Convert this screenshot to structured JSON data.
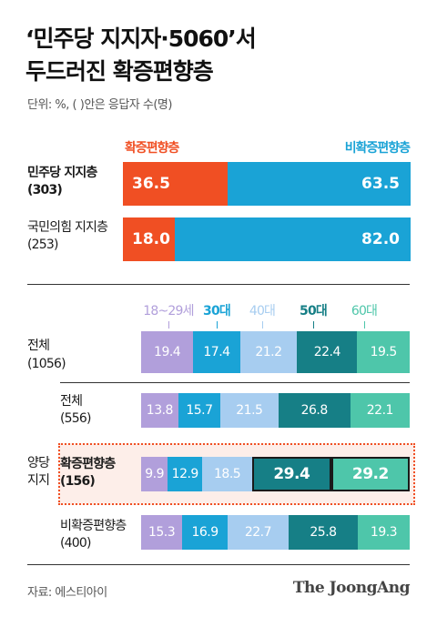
{
  "header": {
    "title_line1": "‘민주당 지지자·5060’서",
    "title_line2": "두드러진 확증편향층",
    "unit_note": "단위: %, (  )안은 응답자 수(명)"
  },
  "colors": {
    "confirm": "#f04f23",
    "nonconfirm": "#1aa3d6",
    "age_18_29": "#b19fdb",
    "age_30s": "#1aa3d6",
    "age_40s": "#a7cdf0",
    "age_50s": "#167f86",
    "age_60s": "#4ec6aa",
    "highlight_bg": "#fdeee9",
    "highlight_border": "#f04f23"
  },
  "chart_data": [
    {
      "type": "bar",
      "stacked": true,
      "orientation": "horizontal",
      "series_names": [
        "확증편향층",
        "비확증편향층"
      ],
      "rows": [
        {
          "label": "민주당 지지층",
          "count": "(303)",
          "values": [
            36.5,
            63.5
          ],
          "labels": [
            "36.5",
            "63.5"
          ]
        },
        {
          "label": "국민의힘 지지층",
          "count": "(253)",
          "values": [
            18.0,
            82.0
          ],
          "labels": [
            "18.0",
            "82.0"
          ]
        }
      ]
    },
    {
      "type": "bar",
      "stacked": true,
      "orientation": "horizontal",
      "categories": [
        "18~29세",
        "30대",
        "40대",
        "50대",
        "60대"
      ],
      "section_label": "양당\n지지",
      "rows": [
        {
          "label": "전체",
          "count": "(1056)",
          "values": [
            19.4,
            17.4,
            21.2,
            22.4,
            19.5
          ],
          "labels": [
            "19.4",
            "17.4",
            "21.2",
            "22.4",
            "19.5"
          ]
        },
        {
          "label": "전체",
          "count": "(556)",
          "values": [
            13.8,
            15.7,
            21.5,
            26.8,
            22.1
          ],
          "labels": [
            "13.8",
            "15.7",
            "21.5",
            "26.8",
            "22.1"
          ]
        },
        {
          "label": "확증편향층",
          "count": "(156)",
          "values": [
            9.9,
            12.9,
            18.5,
            29.4,
            29.2
          ],
          "labels": [
            "9.9",
            "12.9",
            "18.5",
            "29.4",
            "29.2"
          ],
          "highlight": true
        },
        {
          "label": "비확증편향층",
          "count": "(400)",
          "values": [
            15.3,
            16.9,
            22.7,
            25.8,
            19.3
          ],
          "labels": [
            "15.3",
            "16.9",
            "22.7",
            "25.8",
            "19.3"
          ]
        }
      ]
    }
  ],
  "footer": {
    "source": "자료: 에스티아이",
    "brand": "The JoongAng"
  }
}
